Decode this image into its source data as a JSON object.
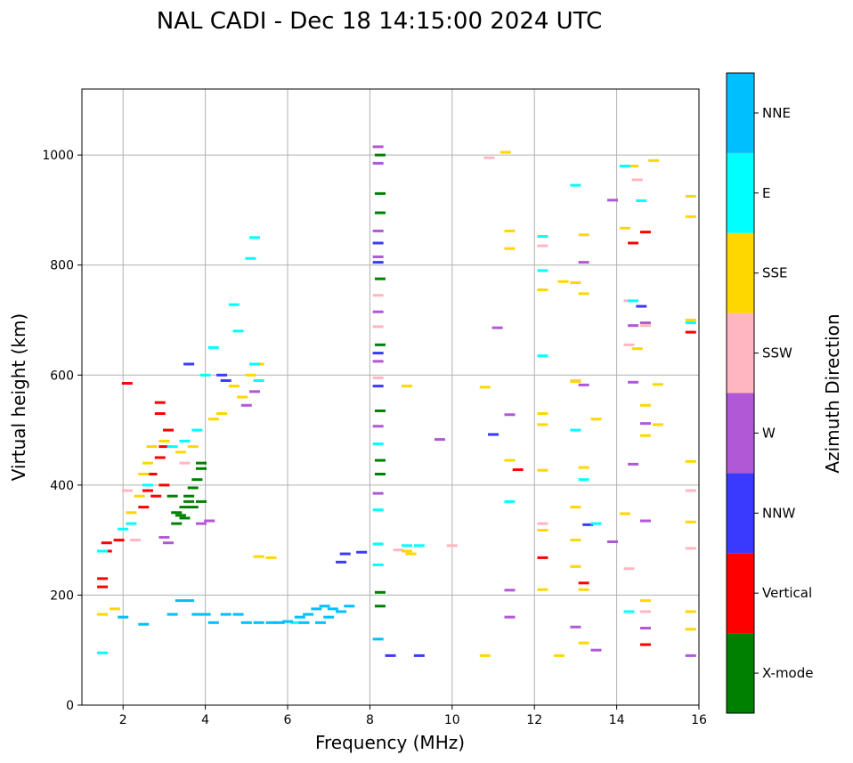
{
  "chart_data": {
    "type": "scatter",
    "title": "NAL CADI - Dec 18 14:15:00 2024 UTC",
    "xlabel": "Frequency (MHz)",
    "ylabel": "Virtual height (km)",
    "xlim": [
      1,
      16
    ],
    "ylim": [
      0,
      1120
    ],
    "xticks": [
      2,
      4,
      6,
      8,
      10,
      12,
      14,
      16
    ],
    "yticks": [
      0,
      200,
      400,
      600,
      800,
      1000
    ],
    "grid": true,
    "colorbar": {
      "label": "Azimuth Direction",
      "categories": [
        {
          "name": "X-mode",
          "color": "#008000"
        },
        {
          "name": "Vertical",
          "color": "#ff0000"
        },
        {
          "name": "NNW",
          "color": "#3a3aff"
        },
        {
          "name": "W",
          "color": "#b158d6"
        },
        {
          "name": "SSW",
          "color": "#ffb6c1"
        },
        {
          "name": "SSE",
          "color": "#ffd700"
        },
        {
          "name": "E",
          "color": "#00ffff"
        },
        {
          "name": "NNE",
          "color": "#00bfff"
        }
      ]
    },
    "series": [
      {
        "name": "X-mode",
        "points": [
          [
            8.25,
            1000
          ],
          [
            8.25,
            930
          ],
          [
            8.25,
            895
          ],
          [
            8.25,
            775
          ],
          [
            8.25,
            655
          ],
          [
            8.25,
            535
          ],
          [
            8.25,
            445
          ],
          [
            8.25,
            420
          ],
          [
            8.25,
            205
          ],
          [
            8.25,
            180
          ],
          [
            3.3,
            330
          ],
          [
            3.4,
            345
          ],
          [
            3.5,
            360
          ],
          [
            3.6,
            380
          ],
          [
            3.7,
            395
          ],
          [
            3.8,
            410
          ],
          [
            3.9,
            440
          ],
          [
            3.5,
            340
          ],
          [
            3.3,
            350
          ],
          [
            3.6,
            370
          ],
          [
            3.9,
            370
          ],
          [
            3.7,
            360
          ],
          [
            3.2,
            380
          ],
          [
            3.9,
            430
          ]
        ]
      },
      {
        "name": "Vertical",
        "points": [
          [
            1.5,
            215
          ],
          [
            1.5,
            230
          ],
          [
            1.6,
            280
          ],
          [
            1.6,
            295
          ],
          [
            1.9,
            300
          ],
          [
            2.1,
            585
          ],
          [
            2.5,
            360
          ],
          [
            2.6,
            390
          ],
          [
            2.7,
            420
          ],
          [
            2.9,
            450
          ],
          [
            2.9,
            530
          ],
          [
            2.9,
            550
          ],
          [
            3.0,
            400
          ],
          [
            2.8,
            380
          ],
          [
            3.1,
            500
          ],
          [
            3.0,
            470
          ],
          [
            14.4,
            840
          ],
          [
            14.7,
            860
          ],
          [
            15.8,
            678
          ],
          [
            14.7,
            110
          ],
          [
            12.2,
            268
          ],
          [
            11.6,
            428
          ],
          [
            13.2,
            222
          ]
        ]
      },
      {
        "name": "NNW",
        "points": [
          [
            8.2,
            840
          ],
          [
            8.2,
            805
          ],
          [
            8.2,
            640
          ],
          [
            8.2,
            580
          ],
          [
            8.5,
            90
          ],
          [
            9.2,
            90
          ],
          [
            13.3,
            328
          ],
          [
            14.6,
            725
          ],
          [
            11.0,
            492
          ],
          [
            7.4,
            275
          ],
          [
            7.8,
            278
          ],
          [
            7.3,
            260
          ],
          [
            3.6,
            620
          ],
          [
            4.4,
            600
          ],
          [
            4.5,
            590
          ]
        ]
      },
      {
        "name": "W",
        "points": [
          [
            8.2,
            1015
          ],
          [
            8.2,
            985
          ],
          [
            8.2,
            862
          ],
          [
            8.2,
            815
          ],
          [
            8.2,
            715
          ],
          [
            8.2,
            625
          ],
          [
            8.2,
            507
          ],
          [
            8.2,
            385
          ],
          [
            11.4,
            528
          ],
          [
            11.4,
            209
          ],
          [
            11.4,
            160
          ],
          [
            13.0,
            142
          ],
          [
            13.2,
            582
          ],
          [
            13.2,
            805
          ],
          [
            13.9,
            297
          ],
          [
            13.9,
            918
          ],
          [
            14.4,
            438
          ],
          [
            14.7,
            512
          ],
          [
            14.7,
            335
          ],
          [
            14.7,
            140
          ],
          [
            15.8,
            90
          ],
          [
            13.5,
            100
          ],
          [
            9.7,
            483
          ],
          [
            11.1,
            686
          ],
          [
            3.9,
            330
          ],
          [
            4.1,
            335
          ],
          [
            3.1,
            295
          ],
          [
            3.0,
            305
          ],
          [
            5.0,
            545
          ],
          [
            5.2,
            570
          ],
          [
            14.4,
            587
          ],
          [
            14.4,
            690
          ],
          [
            14.7,
            695
          ]
        ]
      },
      {
        "name": "SSW",
        "points": [
          [
            8.2,
            745
          ],
          [
            8.2,
            688
          ],
          [
            8.2,
            595
          ],
          [
            10.0,
            290
          ],
          [
            10.9,
            995
          ],
          [
            12.2,
            835
          ],
          [
            12.2,
            330
          ],
          [
            14.3,
            655
          ],
          [
            14.3,
            735
          ],
          [
            14.3,
            248
          ],
          [
            14.7,
            690
          ],
          [
            14.7,
            170
          ],
          [
            14.5,
            955
          ],
          [
            13.0,
            590
          ],
          [
            15.8,
            390
          ],
          [
            15.8,
            285
          ],
          [
            2.1,
            390
          ],
          [
            3.5,
            440
          ],
          [
            2.3,
            300
          ],
          [
            8.7,
            282
          ]
        ]
      },
      {
        "name": "SSE",
        "points": [
          [
            10.8,
            578
          ],
          [
            10.8,
            90
          ],
          [
            11.3,
            1005
          ],
          [
            11.4,
            862
          ],
          [
            11.4,
            830
          ],
          [
            11.4,
            445
          ],
          [
            12.2,
            755
          ],
          [
            12.2,
            530
          ],
          [
            12.2,
            510
          ],
          [
            12.2,
            427
          ],
          [
            12.2,
            318
          ],
          [
            12.2,
            210
          ],
          [
            12.6,
            90
          ],
          [
            12.7,
            770
          ],
          [
            13.0,
            768
          ],
          [
            13.0,
            588
          ],
          [
            13.0,
            360
          ],
          [
            13.0,
            300
          ],
          [
            13.0,
            252
          ],
          [
            13.2,
            855
          ],
          [
            13.2,
            748
          ],
          [
            13.2,
            432
          ],
          [
            13.2,
            210
          ],
          [
            13.2,
            113
          ],
          [
            13.5,
            520
          ],
          [
            14.2,
            867
          ],
          [
            14.2,
            348
          ],
          [
            14.4,
            980
          ],
          [
            14.5,
            648
          ],
          [
            14.7,
            545
          ],
          [
            14.7,
            490
          ],
          [
            14.7,
            190
          ],
          [
            14.9,
            990
          ],
          [
            15.0,
            583
          ],
          [
            15.0,
            510
          ],
          [
            15.8,
            925
          ],
          [
            15.8,
            888
          ],
          [
            15.8,
            700
          ],
          [
            15.8,
            443
          ],
          [
            15.8,
            333
          ],
          [
            15.8,
            170
          ],
          [
            15.8,
            138
          ],
          [
            8.9,
            580
          ],
          [
            8.9,
            280
          ],
          [
            9.0,
            275
          ],
          [
            2.2,
            350
          ],
          [
            2.4,
            380
          ],
          [
            2.5,
            420
          ],
          [
            2.6,
            440
          ],
          [
            2.7,
            470
          ],
          [
            3.0,
            480
          ],
          [
            3.4,
            460
          ],
          [
            3.7,
            470
          ],
          [
            4.2,
            520
          ],
          [
            4.4,
            530
          ],
          [
            4.7,
            580
          ],
          [
            5.1,
            600
          ],
          [
            5.3,
            620
          ],
          [
            4.9,
            560
          ],
          [
            5.6,
            268
          ],
          [
            5.3,
            270
          ],
          [
            1.5,
            165
          ],
          [
            1.8,
            175
          ]
        ]
      },
      {
        "name": "E",
        "points": [
          [
            8.2,
            475
          ],
          [
            8.2,
            355
          ],
          [
            8.2,
            293
          ],
          [
            8.2,
            255
          ],
          [
            8.9,
            290
          ],
          [
            9.2,
            290
          ],
          [
            11.4,
            370
          ],
          [
            12.2,
            852
          ],
          [
            12.2,
            790
          ],
          [
            12.2,
            635
          ],
          [
            13.0,
            945
          ],
          [
            13.0,
            500
          ],
          [
            13.2,
            410
          ],
          [
            13.5,
            330
          ],
          [
            14.2,
            980
          ],
          [
            14.4,
            735
          ],
          [
            14.6,
            917
          ],
          [
            14.3,
            170
          ],
          [
            15.8,
            695
          ],
          [
            1.5,
            280
          ],
          [
            2.0,
            320
          ],
          [
            2.2,
            330
          ],
          [
            2.6,
            400
          ],
          [
            3.2,
            470
          ],
          [
            3.5,
            480
          ],
          [
            3.8,
            500
          ],
          [
            4.0,
            600
          ],
          [
            4.2,
            650
          ],
          [
            4.7,
            728
          ],
          [
            5.1,
            812
          ],
          [
            5.2,
            850
          ],
          [
            4.8,
            680
          ],
          [
            5.2,
            620
          ],
          [
            5.3,
            590
          ],
          [
            1.5,
            95
          ],
          [
            6.2,
            150
          ]
        ]
      },
      {
        "name": "NNE",
        "points": [
          [
            8.2,
            120
          ],
          [
            2.0,
            160
          ],
          [
            2.5,
            147
          ],
          [
            3.2,
            165
          ],
          [
            3.4,
            190
          ],
          [
            3.6,
            190
          ],
          [
            3.8,
            165
          ],
          [
            4.0,
            165
          ],
          [
            4.2,
            150
          ],
          [
            4.5,
            165
          ],
          [
            4.8,
            165
          ],
          [
            5.0,
            150
          ],
          [
            5.3,
            150
          ],
          [
            5.6,
            150
          ],
          [
            5.8,
            150
          ],
          [
            6.0,
            152
          ],
          [
            6.3,
            160
          ],
          [
            6.5,
            165
          ],
          [
            6.7,
            175
          ],
          [
            6.9,
            180
          ],
          [
            7.1,
            175
          ],
          [
            7.3,
            170
          ],
          [
            7.5,
            180
          ],
          [
            6.4,
            150
          ],
          [
            6.8,
            150
          ],
          [
            7.0,
            160
          ]
        ]
      }
    ]
  }
}
